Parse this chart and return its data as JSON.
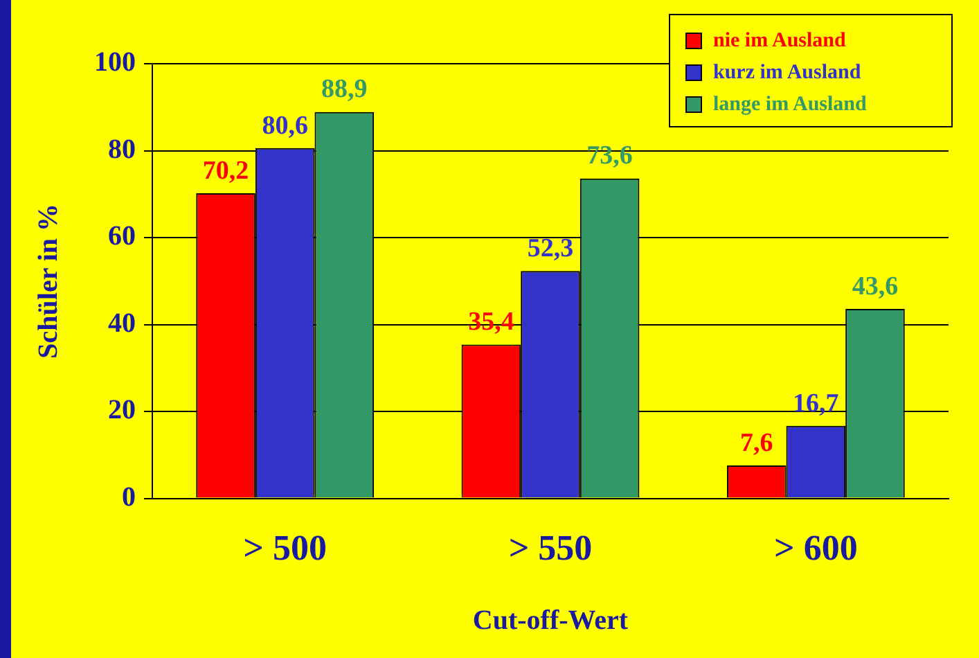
{
  "chart_data": {
    "type": "bar",
    "xlabel": "Cut-off-Wert",
    "ylabel": "Schüler in %",
    "categories": [
      "> 500",
      "> 550",
      "> 600"
    ],
    "series": [
      {
        "name": "nie im Ausland",
        "color": "#ff0000",
        "values": [
          70.2,
          35.4,
          7.6
        ],
        "value_labels": [
          "70,2",
          "35,4",
          "7,6"
        ]
      },
      {
        "name": "kurz im Ausland",
        "color": "#3333cc",
        "values": [
          80.6,
          52.3,
          16.7
        ],
        "value_labels": [
          "80,6",
          "52,3",
          "16,7"
        ]
      },
      {
        "name": "lange im Ausland",
        "color": "#339966",
        "values": [
          88.9,
          73.6,
          43.6
        ],
        "value_labels": [
          "88,9",
          "73,6",
          "43,6"
        ]
      }
    ],
    "ylim": [
      0,
      100
    ],
    "yticks": [
      0,
      20,
      40,
      60,
      80,
      100
    ],
    "grid": "y",
    "legend": "top right"
  }
}
